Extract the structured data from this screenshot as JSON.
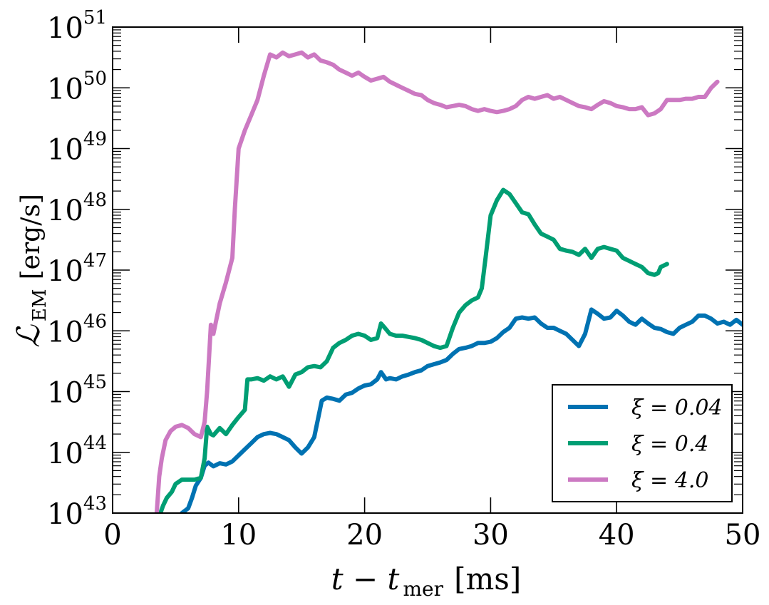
{
  "chart_data": {
    "type": "line",
    "xlabel": {
      "main": "t − t",
      "sub": "mer",
      "unit": "[ms]"
    },
    "ylabel": {
      "main": "ℒ",
      "sub": "EM",
      "unit": "[erg/s]"
    },
    "xlim": [
      0,
      50
    ],
    "ylim": [
      1e+43,
      1e+51
    ],
    "yscale": "log",
    "xticks": [
      {
        "value": 0,
        "label": "0"
      },
      {
        "value": 10,
        "label": "10"
      },
      {
        "value": 20,
        "label": "20"
      },
      {
        "value": 30,
        "label": "30"
      },
      {
        "value": 40,
        "label": "40"
      },
      {
        "value": 50,
        "label": "50"
      }
    ],
    "yticks": [
      {
        "exp": 43,
        "base": "10",
        "sup": "43"
      },
      {
        "exp": 44,
        "base": "10",
        "sup": "44"
      },
      {
        "exp": 45,
        "base": "10",
        "sup": "45"
      },
      {
        "exp": 46,
        "base": "10",
        "sup": "46"
      },
      {
        "exp": 47,
        "base": "10",
        "sup": "47"
      },
      {
        "exp": 48,
        "base": "10",
        "sup": "48"
      },
      {
        "exp": 49,
        "base": "10",
        "sup": "49"
      },
      {
        "exp": 50,
        "base": "10",
        "sup": "50"
      },
      {
        "exp": 51,
        "base": "10",
        "sup": "51"
      }
    ],
    "grid": false,
    "legend_position": "bottom-right",
    "series": [
      {
        "name": "ξ = 0.04",
        "color": "#0072b2",
        "points": [
          [
            5.5,
            43.0
          ],
          [
            6.0,
            43.08
          ],
          [
            6.3,
            43.25
          ],
          [
            6.6,
            43.45
          ],
          [
            7.0,
            43.58
          ],
          [
            7.3,
            43.78
          ],
          [
            7.6,
            43.83
          ],
          [
            8.0,
            43.77
          ],
          [
            8.5,
            43.82
          ],
          [
            9.0,
            43.8
          ],
          [
            9.5,
            43.85
          ],
          [
            10.0,
            43.95
          ],
          [
            10.5,
            44.05
          ],
          [
            11.0,
            44.15
          ],
          [
            11.5,
            44.25
          ],
          [
            12.0,
            44.3
          ],
          [
            12.5,
            44.32
          ],
          [
            13.0,
            44.3
          ],
          [
            13.5,
            44.25
          ],
          [
            14.0,
            44.2
          ],
          [
            14.5,
            44.08
          ],
          [
            15.0,
            43.98
          ],
          [
            15.5,
            44.08
          ],
          [
            16.0,
            44.25
          ],
          [
            16.3,
            44.55
          ],
          [
            16.6,
            44.85
          ],
          [
            17.0,
            44.9
          ],
          [
            17.5,
            44.88
          ],
          [
            18.0,
            44.85
          ],
          [
            18.5,
            44.95
          ],
          [
            19.0,
            44.98
          ],
          [
            19.5,
            45.05
          ],
          [
            20.0,
            45.1
          ],
          [
            20.5,
            45.12
          ],
          [
            21.0,
            45.2
          ],
          [
            21.3,
            45.32
          ],
          [
            21.7,
            45.2
          ],
          [
            22.0,
            45.22
          ],
          [
            22.5,
            45.2
          ],
          [
            23.0,
            45.25
          ],
          [
            23.5,
            45.28
          ],
          [
            24.0,
            45.32
          ],
          [
            24.5,
            45.35
          ],
          [
            25.0,
            45.42
          ],
          [
            25.5,
            45.45
          ],
          [
            26.0,
            45.48
          ],
          [
            26.5,
            45.52
          ],
          [
            27.0,
            45.62
          ],
          [
            27.5,
            45.7
          ],
          [
            28.0,
            45.72
          ],
          [
            28.5,
            45.75
          ],
          [
            29.0,
            45.8
          ],
          [
            29.5,
            45.8
          ],
          [
            30.0,
            45.82
          ],
          [
            30.5,
            45.88
          ],
          [
            31.0,
            45.98
          ],
          [
            31.5,
            46.05
          ],
          [
            32.0,
            46.2
          ],
          [
            32.5,
            46.22
          ],
          [
            33.0,
            46.2
          ],
          [
            33.5,
            46.22
          ],
          [
            34.0,
            46.12
          ],
          [
            34.5,
            46.05
          ],
          [
            35.0,
            46.05
          ],
          [
            35.5,
            46.0
          ],
          [
            36.0,
            45.95
          ],
          [
            36.5,
            45.85
          ],
          [
            37.0,
            45.75
          ],
          [
            37.5,
            45.95
          ],
          [
            38.0,
            46.35
          ],
          [
            38.5,
            46.28
          ],
          [
            39.0,
            46.2
          ],
          [
            39.5,
            46.22
          ],
          [
            40.0,
            46.33
          ],
          [
            40.5,
            46.25
          ],
          [
            41.0,
            46.15
          ],
          [
            41.5,
            46.1
          ],
          [
            42.0,
            46.2
          ],
          [
            42.5,
            46.12
          ],
          [
            43.0,
            46.05
          ],
          [
            43.5,
            46.03
          ],
          [
            44.0,
            45.98
          ],
          [
            44.5,
            45.95
          ],
          [
            45.0,
            46.05
          ],
          [
            45.5,
            46.1
          ],
          [
            46.0,
            46.15
          ],
          [
            46.5,
            46.25
          ],
          [
            47.0,
            46.25
          ],
          [
            47.5,
            46.2
          ],
          [
            48.0,
            46.12
          ],
          [
            48.5,
            46.15
          ],
          [
            49.0,
            46.1
          ],
          [
            49.5,
            46.18
          ],
          [
            50.0,
            46.1
          ]
        ]
      },
      {
        "name": "ξ = 0.4",
        "color": "#009e73",
        "points": [
          [
            3.8,
            43.0
          ],
          [
            4.0,
            43.12
          ],
          [
            4.3,
            43.25
          ],
          [
            4.7,
            43.35
          ],
          [
            5.0,
            43.48
          ],
          [
            5.5,
            43.55
          ],
          [
            6.0,
            43.55
          ],
          [
            6.5,
            43.55
          ],
          [
            7.0,
            43.58
          ],
          [
            7.3,
            43.9
          ],
          [
            7.5,
            44.42
          ],
          [
            7.8,
            44.3
          ],
          [
            8.0,
            44.28
          ],
          [
            8.5,
            44.4
          ],
          [
            9.0,
            44.3
          ],
          [
            9.5,
            44.45
          ],
          [
            10.0,
            44.58
          ],
          [
            10.5,
            44.7
          ],
          [
            10.7,
            45.2
          ],
          [
            11.0,
            45.2
          ],
          [
            11.5,
            45.22
          ],
          [
            12.0,
            45.18
          ],
          [
            12.5,
            45.25
          ],
          [
            13.0,
            45.2
          ],
          [
            13.5,
            45.25
          ],
          [
            14.0,
            45.08
          ],
          [
            14.5,
            45.28
          ],
          [
            15.0,
            45.32
          ],
          [
            15.5,
            45.4
          ],
          [
            16.0,
            45.42
          ],
          [
            16.5,
            45.4
          ],
          [
            17.0,
            45.5
          ],
          [
            17.5,
            45.72
          ],
          [
            18.0,
            45.8
          ],
          [
            18.5,
            45.85
          ],
          [
            19.0,
            45.92
          ],
          [
            19.5,
            45.95
          ],
          [
            20.0,
            45.92
          ],
          [
            20.5,
            45.85
          ],
          [
            21.0,
            45.88
          ],
          [
            21.3,
            46.12
          ],
          [
            21.6,
            46.05
          ],
          [
            22.0,
            45.95
          ],
          [
            22.5,
            45.92
          ],
          [
            23.0,
            45.92
          ],
          [
            23.5,
            45.9
          ],
          [
            24.0,
            45.88
          ],
          [
            24.5,
            45.85
          ],
          [
            25.0,
            45.8
          ],
          [
            25.5,
            45.75
          ],
          [
            26.0,
            45.72
          ],
          [
            26.5,
            45.75
          ],
          [
            27.0,
            46.05
          ],
          [
            27.5,
            46.3
          ],
          [
            28.0,
            46.42
          ],
          [
            28.5,
            46.5
          ],
          [
            29.0,
            46.55
          ],
          [
            29.3,
            46.7
          ],
          [
            29.6,
            47.2
          ],
          [
            30.0,
            47.9
          ],
          [
            30.5,
            48.15
          ],
          [
            31.0,
            48.32
          ],
          [
            31.5,
            48.25
          ],
          [
            32.0,
            48.1
          ],
          [
            32.5,
            47.95
          ],
          [
            33.0,
            47.92
          ],
          [
            33.5,
            47.75
          ],
          [
            34.0,
            47.6
          ],
          [
            34.5,
            47.55
          ],
          [
            35.0,
            47.5
          ],
          [
            35.5,
            47.35
          ],
          [
            36.0,
            47.32
          ],
          [
            36.5,
            47.3
          ],
          [
            37.0,
            47.25
          ],
          [
            37.5,
            47.35
          ],
          [
            38.0,
            47.2
          ],
          [
            38.5,
            47.35
          ],
          [
            39.0,
            47.38
          ],
          [
            39.5,
            47.35
          ],
          [
            40.0,
            47.32
          ],
          [
            40.5,
            47.2
          ],
          [
            41.0,
            47.15
          ],
          [
            41.5,
            47.1
          ],
          [
            42.0,
            47.05
          ],
          [
            42.5,
            46.95
          ],
          [
            43.0,
            46.92
          ],
          [
            43.3,
            46.95
          ],
          [
            43.5,
            47.05
          ],
          [
            44.0,
            47.1
          ]
        ]
      },
      {
        "name": "ξ = 4.0",
        "color": "#cc79c2",
        "points": [
          [
            3.5,
            43.0
          ],
          [
            3.7,
            43.6
          ],
          [
            3.9,
            43.9
          ],
          [
            4.2,
            44.2
          ],
          [
            4.6,
            44.35
          ],
          [
            5.0,
            44.42
          ],
          [
            5.5,
            44.45
          ],
          [
            6.0,
            44.4
          ],
          [
            6.5,
            44.3
          ],
          [
            7.0,
            44.25
          ],
          [
            7.3,
            44.5
          ],
          [
            7.5,
            45.0
          ],
          [
            7.8,
            46.1
          ],
          [
            8.0,
            45.95
          ],
          [
            8.5,
            46.45
          ],
          [
            9.0,
            46.8
          ],
          [
            9.5,
            47.2
          ],
          [
            9.7,
            48.0
          ],
          [
            10.0,
            49.0
          ],
          [
            10.5,
            49.3
          ],
          [
            11.0,
            49.55
          ],
          [
            11.5,
            49.8
          ],
          [
            12.0,
            50.2
          ],
          [
            12.5,
            50.55
          ],
          [
            13.0,
            50.5
          ],
          [
            13.5,
            50.58
          ],
          [
            14.0,
            50.52
          ],
          [
            14.5,
            50.55
          ],
          [
            15.0,
            50.58
          ],
          [
            15.5,
            50.5
          ],
          [
            16.0,
            50.55
          ],
          [
            16.5,
            50.45
          ],
          [
            17.0,
            50.42
          ],
          [
            17.5,
            50.38
          ],
          [
            18.0,
            50.3
          ],
          [
            18.5,
            50.25
          ],
          [
            19.0,
            50.2
          ],
          [
            19.5,
            50.25
          ],
          [
            20.0,
            50.18
          ],
          [
            20.5,
            50.12
          ],
          [
            21.0,
            50.15
          ],
          [
            21.5,
            50.18
          ],
          [
            22.0,
            50.1
          ],
          [
            22.5,
            50.05
          ],
          [
            23.0,
            50.0
          ],
          [
            23.5,
            49.95
          ],
          [
            24.0,
            49.9
          ],
          [
            24.5,
            49.88
          ],
          [
            25.0,
            49.8
          ],
          [
            25.5,
            49.75
          ],
          [
            26.0,
            49.72
          ],
          [
            26.5,
            49.68
          ],
          [
            27.0,
            49.7
          ],
          [
            27.5,
            49.72
          ],
          [
            28.0,
            49.7
          ],
          [
            28.5,
            49.65
          ],
          [
            29.0,
            49.62
          ],
          [
            29.5,
            49.65
          ],
          [
            30.0,
            49.62
          ],
          [
            30.5,
            49.6
          ],
          [
            31.0,
            49.62
          ],
          [
            31.5,
            49.65
          ],
          [
            32.0,
            49.7
          ],
          [
            32.5,
            49.8
          ],
          [
            33.0,
            49.85
          ],
          [
            33.5,
            49.82
          ],
          [
            34.0,
            49.85
          ],
          [
            34.5,
            49.88
          ],
          [
            35.0,
            49.82
          ],
          [
            35.5,
            49.85
          ],
          [
            36.0,
            49.8
          ],
          [
            36.5,
            49.75
          ],
          [
            37.0,
            49.7
          ],
          [
            37.5,
            49.68
          ],
          [
            38.0,
            49.65
          ],
          [
            38.5,
            49.72
          ],
          [
            39.0,
            49.78
          ],
          [
            39.5,
            49.75
          ],
          [
            40.0,
            49.7
          ],
          [
            40.5,
            49.68
          ],
          [
            41.0,
            49.65
          ],
          [
            41.5,
            49.65
          ],
          [
            42.0,
            49.68
          ],
          [
            42.5,
            49.55
          ],
          [
            43.0,
            49.58
          ],
          [
            43.5,
            49.65
          ],
          [
            44.0,
            49.8
          ],
          [
            44.5,
            49.8
          ],
          [
            45.0,
            49.8
          ],
          [
            45.5,
            49.82
          ],
          [
            46.0,
            49.82
          ],
          [
            46.5,
            49.85
          ],
          [
            47.0,
            49.85
          ],
          [
            47.5,
            50.0
          ],
          [
            48.0,
            50.1
          ]
        ]
      }
    ]
  }
}
